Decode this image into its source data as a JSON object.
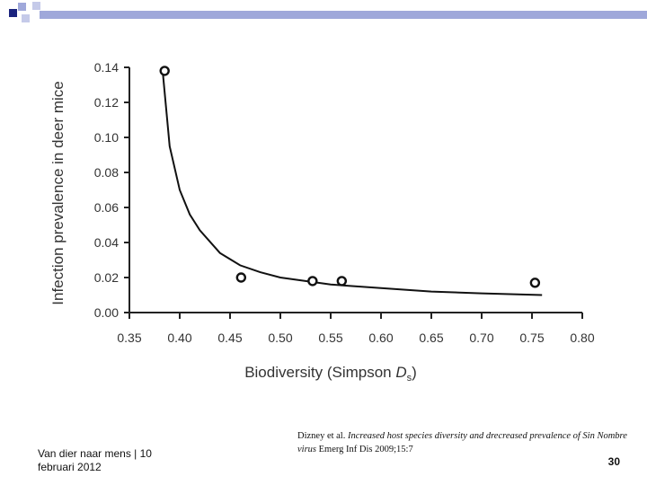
{
  "slide": {
    "footer_left": "Van dier naar mens | 10 februari 2012",
    "citation_author": "Dizney et al. ",
    "citation_title": "Increased host species diversity and drecreased prevalence of Sin Nombre virus",
    "citation_source": " Emerg Inf Dis 2009;15:7",
    "page_number": "30",
    "accent_colors": [
      "#1a237e",
      "#c5cae9",
      "#9fa8da"
    ]
  },
  "chart_data": {
    "type": "scatter",
    "title": "",
    "xlabel_main": "Biodiversity (Simpson ",
    "xlabel_var": "D",
    "xlabel_sub": "s",
    "xlabel_close": ")",
    "ylabel": "Infection prevalence in deer mice",
    "xlim": [
      0.35,
      0.8
    ],
    "ylim": [
      0.0,
      0.14
    ],
    "x_ticks": [
      "0.35",
      "0.40",
      "0.45",
      "0.50",
      "0.55",
      "0.60",
      "0.65",
      "0.70",
      "0.75",
      "0.80"
    ],
    "y_ticks": [
      "0.00",
      "0.02",
      "0.04",
      "0.06",
      "0.08",
      "0.10",
      "0.12",
      "0.14"
    ],
    "points": [
      {
        "x": 0.385,
        "y": 0.138
      },
      {
        "x": 0.461,
        "y": 0.02
      },
      {
        "x": 0.532,
        "y": 0.018
      },
      {
        "x": 0.561,
        "y": 0.018
      },
      {
        "x": 0.753,
        "y": 0.017
      }
    ],
    "fit_curve": {
      "name": "fitted curve",
      "x": [
        0.383,
        0.39,
        0.4,
        0.41,
        0.42,
        0.44,
        0.46,
        0.48,
        0.5,
        0.55,
        0.6,
        0.65,
        0.7,
        0.76
      ],
      "y": [
        0.138,
        0.095,
        0.07,
        0.056,
        0.047,
        0.034,
        0.027,
        0.023,
        0.02,
        0.016,
        0.014,
        0.012,
        0.011,
        0.01
      ]
    }
  }
}
